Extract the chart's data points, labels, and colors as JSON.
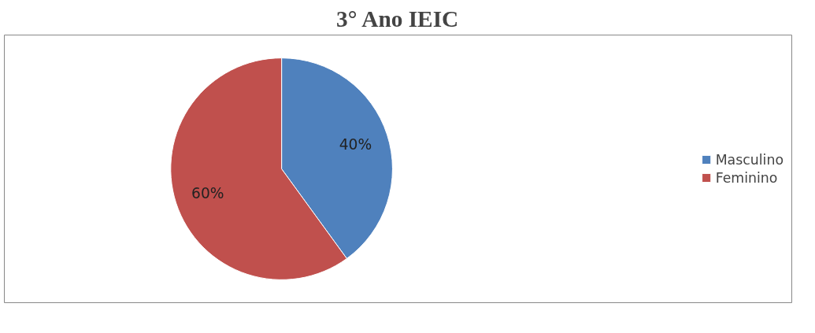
{
  "chart_data": {
    "type": "pie",
    "title": "3° Ano IEIC",
    "categories": [
      "Masculino",
      "Feminino"
    ],
    "values": [
      40,
      60
    ],
    "colors": [
      "#4f81bd",
      "#c0504d"
    ],
    "value_labels": [
      "40%",
      "60%"
    ],
    "legend": "right"
  }
}
